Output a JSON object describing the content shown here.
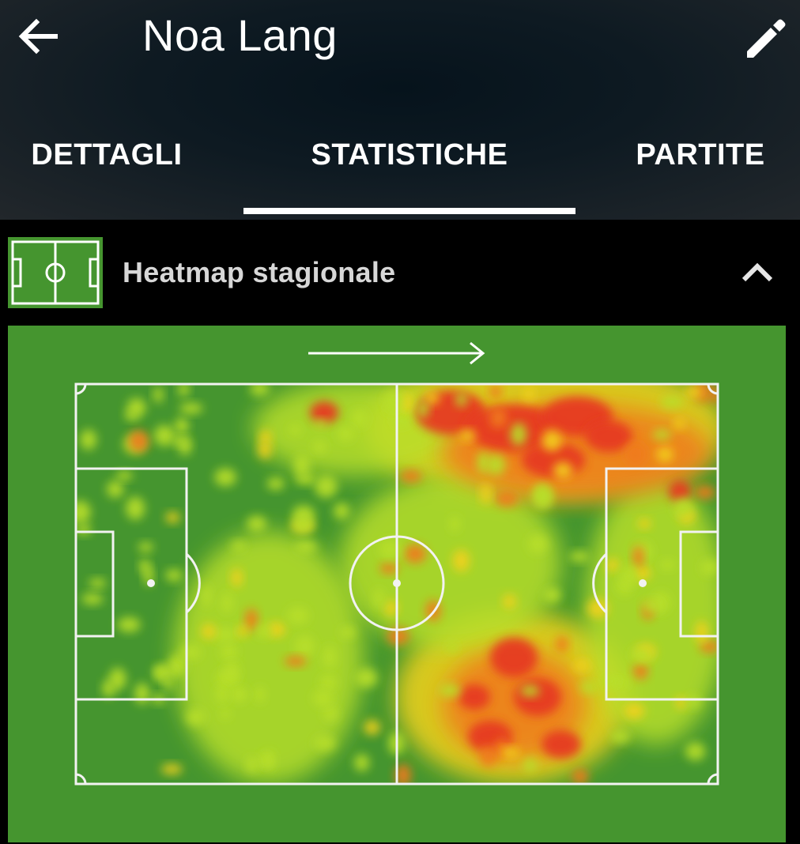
{
  "header": {
    "title": "Noa Lang",
    "back_icon": "arrow-left-icon",
    "edit_icon": "pencil-icon"
  },
  "tabs": [
    {
      "label": "DETTAGLI",
      "active": false
    },
    {
      "label": "STATISTICHE",
      "active": true
    },
    {
      "label": "PARTITE",
      "active": false
    }
  ],
  "section": {
    "title": "Heatmap stagionale",
    "icon": "pitch-icon",
    "collapse_icon": "chevron-up-icon",
    "expanded": true
  },
  "heatmap": {
    "attack_direction": "right",
    "colors": {
      "pitch": "#45952f",
      "low": "#b8df2c",
      "mid": "#f2d21c",
      "high": "#f07a1c",
      "max": "#e63b22"
    },
    "hot_zones": [
      "right half, upper wing (opponent half, top side)",
      "right half, lower-central area",
      "upper band around midfield"
    ]
  },
  "colors": {
    "appbar_bg": "#0e1a22",
    "tab_indicator": "#ffffff",
    "pitch_green": "#45952f",
    "section_title": "#d7d7d7"
  }
}
